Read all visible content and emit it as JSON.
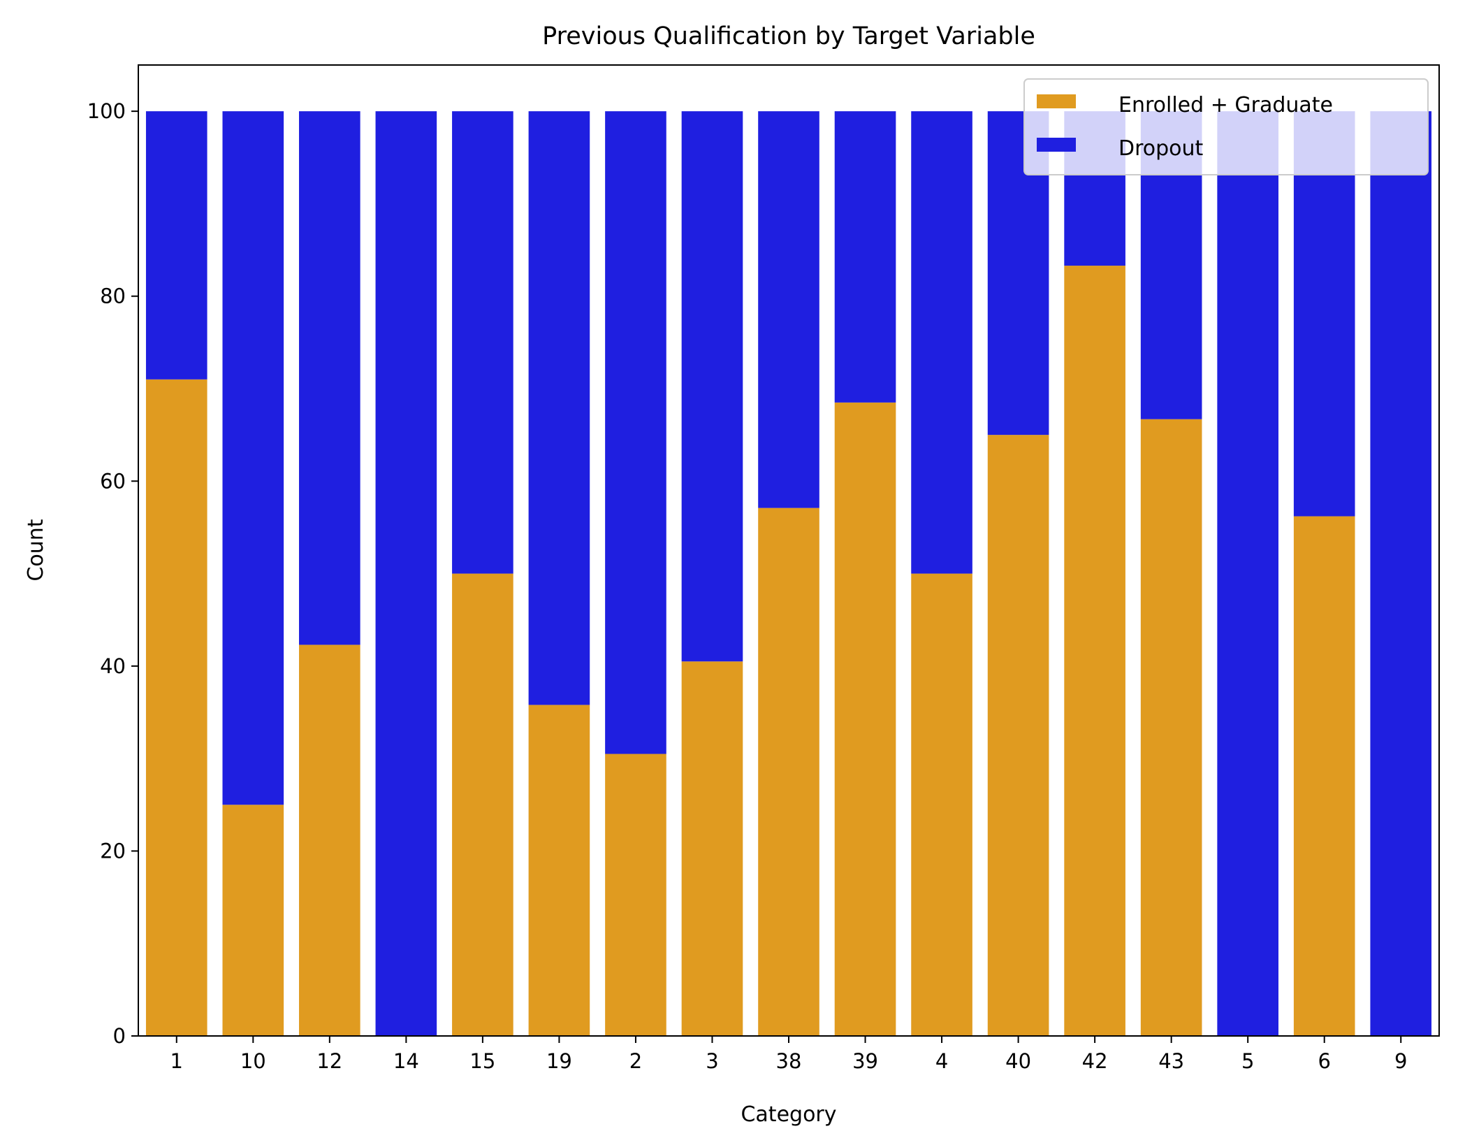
{
  "chart_data": {
    "type": "bar",
    "stacked": true,
    "title": "Previous Qualification by Target Variable",
    "xlabel": "Category",
    "ylabel": "Count",
    "ylim": [
      0,
      105
    ],
    "yticks": [
      0,
      20,
      40,
      60,
      80,
      100
    ],
    "grid": false,
    "legend_position": "top-right",
    "categories": [
      "1",
      "10",
      "12",
      "14",
      "15",
      "19",
      "2",
      "3",
      "38",
      "39",
      "4",
      "40",
      "42",
      "43",
      "5",
      "6",
      "9"
    ],
    "series": [
      {
        "name": "Enrolled + Graduate",
        "color": "#e09b20",
        "values": [
          71.0,
          25.0,
          42.3,
          0,
          50.0,
          35.8,
          30.5,
          40.5,
          57.1,
          68.5,
          50.0,
          65.0,
          83.3,
          66.7,
          0,
          56.2,
          0
        ]
      },
      {
        "name": "Dropout",
        "color": "#1f1fe0",
        "values": [
          29.0,
          75.0,
          57.7,
          100.0,
          50.0,
          64.2,
          69.5,
          59.5,
          42.9,
          31.5,
          50.0,
          35.0,
          16.7,
          33.3,
          100.0,
          43.8,
          100.0
        ]
      }
    ]
  }
}
